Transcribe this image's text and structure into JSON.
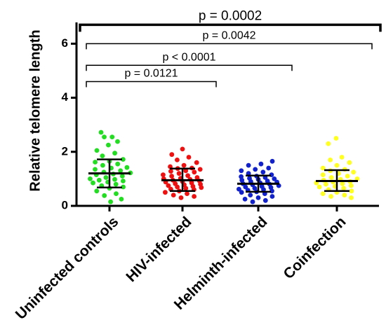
{
  "chart_data": {
    "type": "scatter",
    "ylabel": "Relative telomere length",
    "ylim": [
      0,
      7
    ],
    "yticks": [
      "0",
      "2",
      "4",
      "6"
    ],
    "categories": [
      "Uninfected controls",
      "HIV-infected",
      "Helminth-infected",
      "Coinfection"
    ],
    "colors": [
      "#22dd22",
      "#ee1111",
      "#1122cc",
      "#ffff22"
    ],
    "summary": [
      {
        "mean": 1.2,
        "sd_low": 0.68,
        "sd_high": 1.72
      },
      {
        "mean": 0.95,
        "sd_low": 0.55,
        "sd_high": 1.38
      },
      {
        "mean": 0.82,
        "sd_low": 0.52,
        "sd_high": 1.12
      },
      {
        "mean": 0.92,
        "sd_low": 0.55,
        "sd_high": 1.32
      }
    ],
    "points": [
      [
        2.72,
        2.55,
        2.55,
        2.38,
        2.25,
        2.05,
        1.95,
        1.85,
        1.72,
        1.65,
        1.62,
        1.55,
        1.5,
        1.42,
        1.4,
        1.35,
        1.3,
        1.25,
        1.22,
        1.18,
        1.15,
        1.1,
        1.05,
        1.0,
        0.98,
        0.95,
        0.92,
        0.88,
        0.85,
        0.8,
        0.75,
        0.7,
        0.65,
        0.55,
        0.45,
        0.38,
        0.25,
        0.15
      ],
      [
        2.1,
        1.9,
        1.8,
        1.7,
        1.6,
        1.5,
        1.45,
        1.4,
        1.38,
        1.35,
        1.3,
        1.28,
        1.25,
        1.2,
        1.15,
        1.12,
        1.1,
        1.05,
        1.02,
        1.0,
        0.98,
        0.95,
        0.92,
        0.9,
        0.88,
        0.85,
        0.82,
        0.8,
        0.78,
        0.75,
        0.72,
        0.7,
        0.68,
        0.65,
        0.62,
        0.6,
        0.55,
        0.5,
        0.45,
        0.4,
        0.35,
        0.3
      ],
      [
        1.65,
        1.55,
        1.5,
        1.4,
        1.35,
        1.3,
        1.25,
        1.2,
        1.15,
        1.1,
        1.08,
        1.05,
        1.02,
        1.0,
        0.98,
        0.95,
        0.92,
        0.9,
        0.88,
        0.85,
        0.82,
        0.8,
        0.78,
        0.75,
        0.72,
        0.7,
        0.68,
        0.65,
        0.62,
        0.6,
        0.58,
        0.55,
        0.52,
        0.5,
        0.45,
        0.4,
        0.35,
        0.3,
        0.25,
        0.2,
        0.15
      ],
      [
        2.5,
        2.3,
        1.8,
        1.7,
        1.6,
        1.5,
        1.4,
        1.35,
        1.3,
        1.25,
        1.2,
        1.15,
        1.1,
        1.05,
        1.0,
        0.98,
        0.95,
        0.9,
        0.88,
        0.85,
        0.82,
        0.8,
        0.75,
        0.72,
        0.7,
        0.65,
        0.6,
        0.55,
        0.5,
        0.45,
        0.4,
        0.35,
        0.3
      ]
    ],
    "comparisons": [
      {
        "from": 0,
        "to": 1,
        "label": "p = 0.0121",
        "y": 4.6
      },
      {
        "from": 0,
        "to": 2,
        "label": "p < 0.0001",
        "y": 5.2
      },
      {
        "from": 0,
        "to": 3,
        "label": "p = 0.0042",
        "y": 6.0
      },
      {
        "from": 0,
        "to": 3,
        "label": "p = 0.0002",
        "y": 6.7,
        "main": true
      }
    ]
  }
}
